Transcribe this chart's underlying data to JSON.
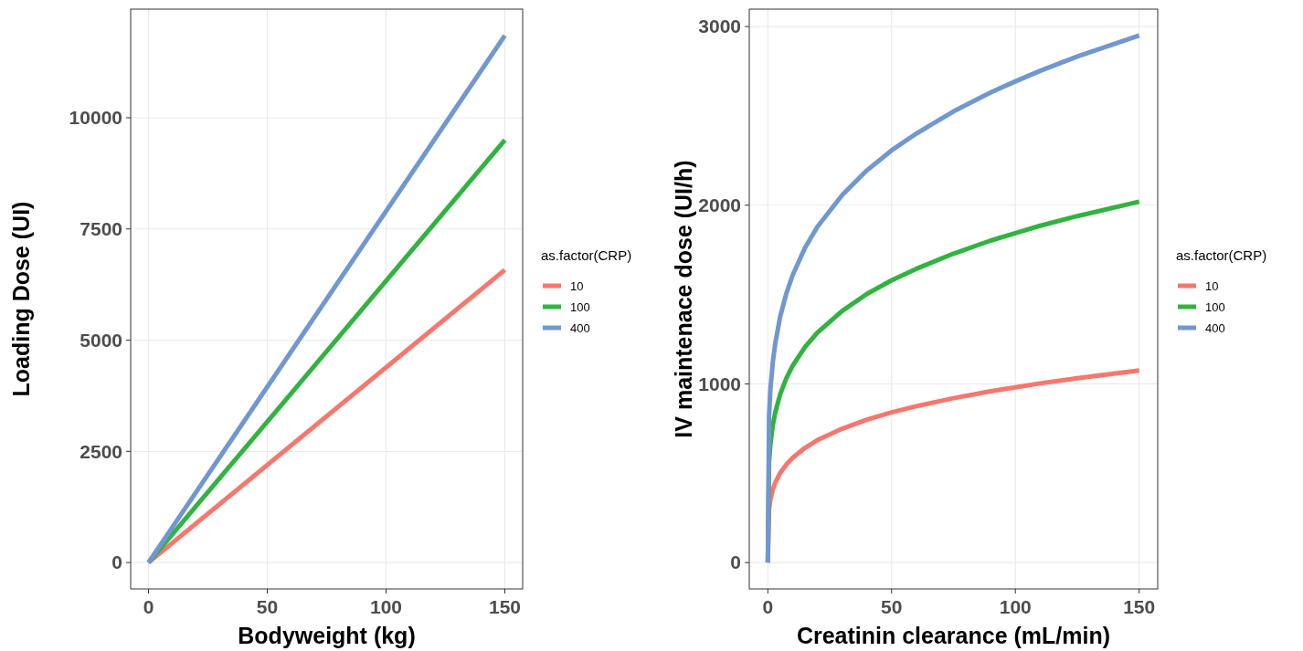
{
  "chart_data": [
    {
      "type": "line",
      "xlabel": "Bodyweight (kg)",
      "ylabel": "Loading Dose (UI)",
      "legend_title": "as.factor(CRP)",
      "legend": "right",
      "grid": true,
      "marker": "none",
      "line_style": "solid",
      "xlim": [
        -7.5,
        157.5
      ],
      "ylim": [
        -592.5,
        12442.5
      ],
      "xticks": [
        0,
        50,
        100,
        150
      ],
      "yticks": [
        0,
        2500,
        5000,
        7500,
        10000
      ],
      "series": [
        {
          "name": "10",
          "color": "#f8766d",
          "x": [
            0,
            150
          ],
          "values": [
            0,
            6580
          ]
        },
        {
          "name": "100",
          "color": "#31b340",
          "x": [
            0,
            150
          ],
          "values": [
            0,
            9500
          ]
        },
        {
          "name": "400",
          "color": "#7097d1",
          "x": [
            0,
            150
          ],
          "values": [
            0,
            11850
          ]
        }
      ]
    },
    {
      "type": "line",
      "xlabel": "Creatinin clearance (mL/min)",
      "ylabel": "IV maintenace dose (UI/h)",
      "legend_title": "as.factor(CRP)",
      "legend": "right",
      "grid": true,
      "marker": "none",
      "line_style": "solid",
      "xlim": [
        -7.5,
        157.5
      ],
      "ylim": [
        -147.5,
        3097.5
      ],
      "xticks": [
        0,
        50,
        100,
        150
      ],
      "yticks": [
        0,
        1000,
        2000,
        3000
      ],
      "series": [
        {
          "name": "10",
          "color": "#f8766d",
          "x": [
            0,
            0.5,
            1,
            2,
            3,
            5,
            7.5,
            10,
            15,
            20,
            30,
            40,
            50,
            60,
            75,
            90,
            100,
            110,
            125,
            150
          ],
          "values": [
            0,
            300,
            350,
            409,
            447,
            502,
            549,
            586,
            642,
            685,
            749,
            800,
            841,
            875,
            920,
            959,
            981,
            1003,
            1032,
            1075
          ]
        },
        {
          "name": "100",
          "color": "#31b340",
          "x": [
            0,
            0.5,
            1,
            2,
            3,
            5,
            7.5,
            10,
            15,
            20,
            30,
            40,
            50,
            60,
            75,
            90,
            100,
            110,
            125,
            150
          ],
          "values": [
            0,
            564,
            659,
            768,
            840,
            943,
            1032,
            1101,
            1206,
            1287,
            1408,
            1503,
            1580,
            1644,
            1729,
            1802,
            1844,
            1885,
            1939,
            2020
          ]
        },
        {
          "name": "400",
          "color": "#7097d1",
          "x": [
            0,
            0.5,
            1,
            2,
            3,
            5,
            7.5,
            10,
            15,
            20,
            30,
            40,
            50,
            60,
            75,
            90,
            100,
            110,
            125,
            150
          ],
          "values": [
            0,
            823,
            962,
            1121,
            1227,
            1378,
            1507,
            1608,
            1761,
            1879,
            2056,
            2195,
            2307,
            2401,
            2525,
            2631,
            2693,
            2752,
            2832,
            2950
          ]
        }
      ]
    }
  ]
}
